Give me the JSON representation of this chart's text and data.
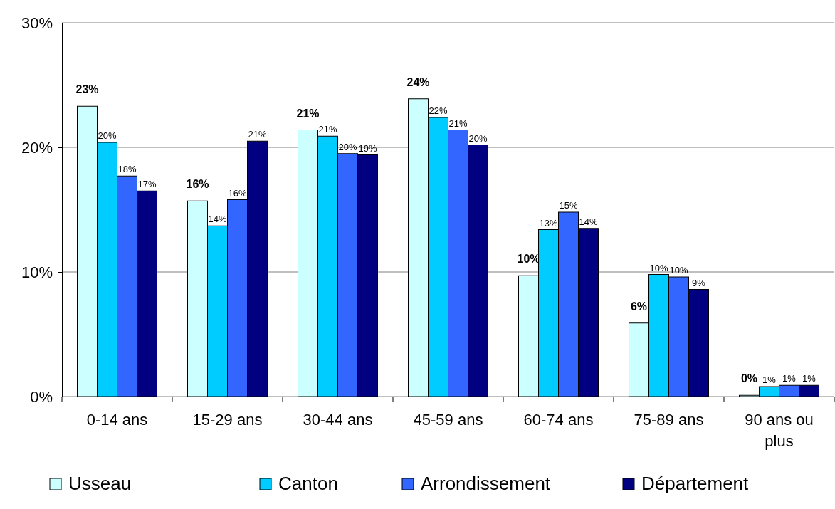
{
  "chart_data": {
    "type": "bar",
    "categories": [
      "0-14 ans",
      "15-29 ans",
      "30-44 ans",
      "45-59 ans",
      "60-74 ans",
      "75-89 ans",
      "90 ans ou plus"
    ],
    "series": [
      {
        "name": "Usseau",
        "color": "#ccffff",
        "values": [
          23.3,
          15.7,
          21.4,
          23.9,
          9.7,
          5.9,
          0.1
        ],
        "value_labels": [
          "23%",
          "16%",
          "21%",
          "24%",
          "10%",
          "6%",
          "0%"
        ]
      },
      {
        "name": "Canton",
        "color": "#00ccff",
        "values": [
          20.4,
          13.7,
          20.9,
          22.4,
          13.4,
          9.8,
          0.8
        ],
        "value_labels": [
          "20%",
          "14%",
          "21%",
          "22%",
          "13%",
          "10%",
          "1%"
        ]
      },
      {
        "name": "Arrondissement",
        "color": "#3366ff",
        "values": [
          17.7,
          15.8,
          19.5,
          21.4,
          14.8,
          9.6,
          0.9
        ],
        "value_labels": [
          "18%",
          "16%",
          "20%",
          "21%",
          "15%",
          "10%",
          "1%"
        ]
      },
      {
        "name": "Département",
        "color": "#000080",
        "values": [
          16.5,
          20.5,
          19.4,
          20.2,
          13.5,
          8.6,
          0.9
        ],
        "value_labels": [
          "17%",
          "21%",
          "19%",
          "20%",
          "14%",
          "9%",
          "1%"
        ]
      }
    ],
    "ylim": [
      0,
      30
    ],
    "yticks": [
      {
        "value": 0,
        "label": "0%"
      },
      {
        "value": 10,
        "label": "10%"
      },
      {
        "value": 20,
        "label": "20%"
      },
      {
        "value": 30,
        "label": "30%"
      }
    ],
    "grid": "y",
    "legend": "bottom"
  }
}
